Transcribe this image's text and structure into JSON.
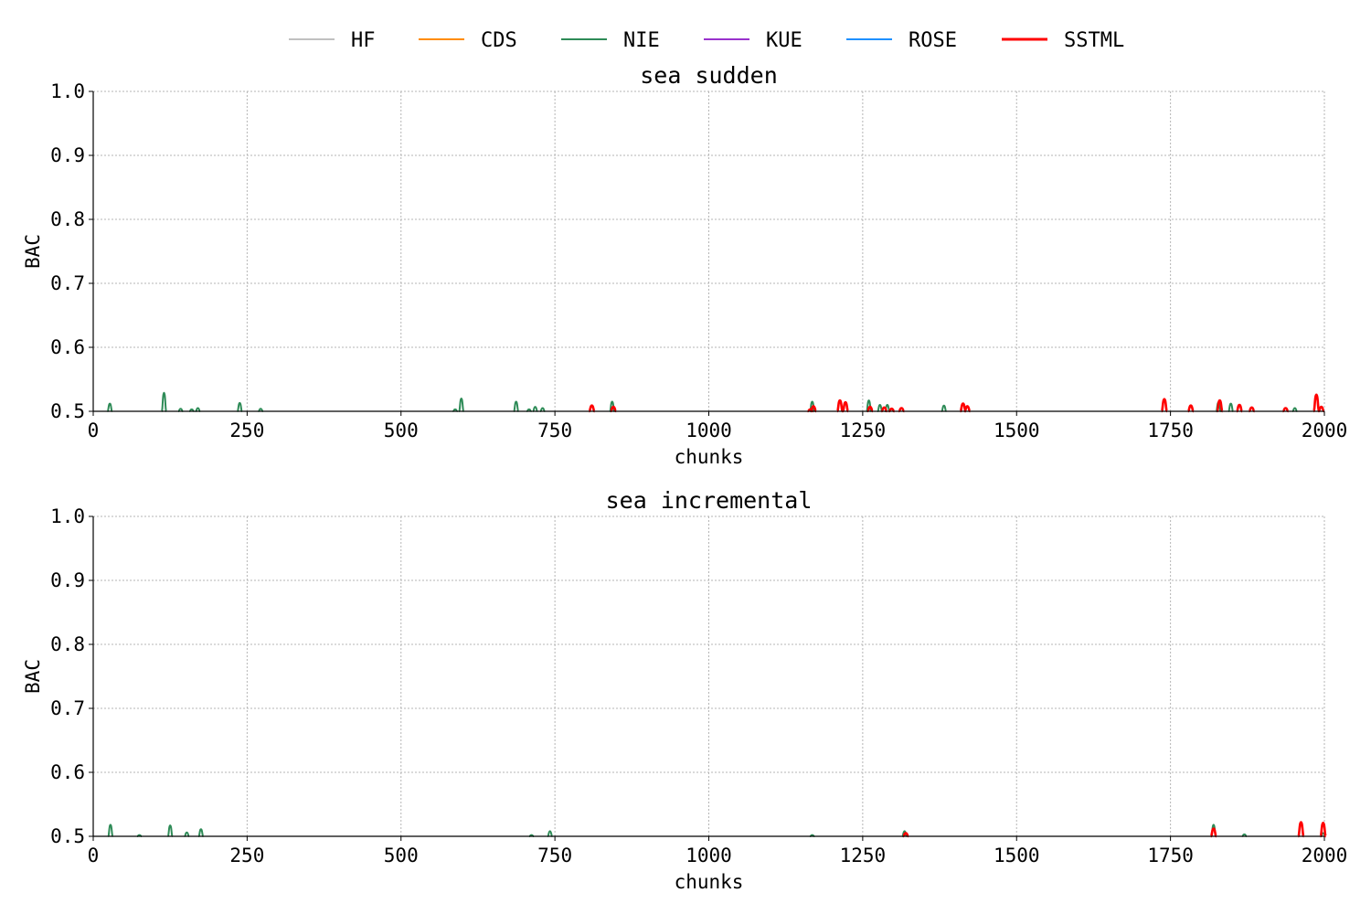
{
  "legend": [
    {
      "name": "HF",
      "color": "#c0c0c0"
    },
    {
      "name": "CDS",
      "color": "#ff8c00"
    },
    {
      "name": "NIE",
      "color": "#2e8b57"
    },
    {
      "name": "KUE",
      "color": "#9932cc"
    },
    {
      "name": "ROSE",
      "color": "#1e90ff"
    },
    {
      "name": "SSTML",
      "color": "#ff0000"
    }
  ],
  "chart_data": [
    {
      "type": "line",
      "title": "sea sudden",
      "xlabel": "chunks",
      "ylabel": "BAC",
      "xlim": [
        0,
        2000
      ],
      "ylim": [
        0.5,
        1.0
      ],
      "xticks": [
        0,
        250,
        500,
        750,
        1000,
        1250,
        1500,
        1750,
        2000
      ],
      "yticks": [
        0.5,
        0.6,
        0.7,
        0.8,
        0.9,
        1.0
      ],
      "grid": true,
      "series": [
        {
          "name": "HF",
          "color": "#c0c0c0",
          "peaks": []
        },
        {
          "name": "CDS",
          "color": "#ff8c00",
          "peaks": []
        },
        {
          "name": "NIE",
          "color": "#2e8b57",
          "peaks": [
            [
              27,
              0.512
            ],
            [
              115,
              0.529
            ],
            [
              142,
              0.504
            ],
            [
              160,
              0.503
            ],
            [
              170,
              0.505
            ],
            [
              238,
              0.513
            ],
            [
              272,
              0.504
            ],
            [
              588,
              0.503
            ],
            [
              598,
              0.52
            ],
            [
              687,
              0.515
            ],
            [
              708,
              0.503
            ],
            [
              718,
              0.507
            ],
            [
              730,
              0.505
            ],
            [
              843,
              0.515
            ],
            [
              1168,
              0.515
            ],
            [
              1260,
              0.517
            ],
            [
              1278,
              0.51
            ],
            [
              1290,
              0.51
            ],
            [
              1382,
              0.509
            ],
            [
              1828,
              0.514
            ],
            [
              1848,
              0.512
            ],
            [
              1952,
              0.505
            ]
          ]
        },
        {
          "name": "KUE",
          "color": "#9932cc",
          "peaks": []
        },
        {
          "name": "ROSE",
          "color": "#1e90ff",
          "peaks": []
        },
        {
          "name": "SSTML",
          "color": "#ff0000",
          "peaks": [
            [
              810,
              0.509
            ],
            [
              845,
              0.507
            ],
            [
              1165,
              0.503
            ],
            [
              1170,
              0.508
            ],
            [
              1213,
              0.517
            ],
            [
              1222,
              0.514
            ],
            [
              1262,
              0.507
            ],
            [
              1285,
              0.506
            ],
            [
              1297,
              0.504
            ],
            [
              1313,
              0.505
            ],
            [
              1413,
              0.512
            ],
            [
              1420,
              0.508
            ],
            [
              1740,
              0.519
            ],
            [
              1783,
              0.509
            ],
            [
              1830,
              0.517
            ],
            [
              1862,
              0.51
            ],
            [
              1882,
              0.506
            ],
            [
              1937,
              0.505
            ],
            [
              1987,
              0.526
            ],
            [
              1995,
              0.507
            ]
          ]
        }
      ]
    },
    {
      "type": "line",
      "title": "sea incremental",
      "xlabel": "chunks",
      "ylabel": "BAC",
      "xlim": [
        0,
        2000
      ],
      "ylim": [
        0.5,
        1.0
      ],
      "xticks": [
        0,
        250,
        500,
        750,
        1000,
        1250,
        1500,
        1750,
        2000
      ],
      "yticks": [
        0.5,
        0.6,
        0.7,
        0.8,
        0.9,
        1.0
      ],
      "grid": true,
      "series": [
        {
          "name": "HF",
          "color": "#c0c0c0",
          "peaks": []
        },
        {
          "name": "CDS",
          "color": "#ff8c00",
          "peaks": []
        },
        {
          "name": "NIE",
          "color": "#2e8b57",
          "peaks": [
            [
              28,
              0.518
            ],
            [
              75,
              0.502
            ],
            [
              125,
              0.517
            ],
            [
              152,
              0.506
            ],
            [
              175,
              0.511
            ],
            [
              712,
              0.502
            ],
            [
              742,
              0.508
            ],
            [
              1168,
              0.502
            ],
            [
              1318,
              0.508
            ],
            [
              1820,
              0.518
            ],
            [
              1870,
              0.503
            ],
            [
              1998,
              0.505
            ]
          ]
        },
        {
          "name": "KUE",
          "color": "#9932cc",
          "peaks": []
        },
        {
          "name": "ROSE",
          "color": "#1e90ff",
          "peaks": []
        },
        {
          "name": "SSTML",
          "color": "#ff0000",
          "peaks": [
            [
              1320,
              0.505
            ],
            [
              1820,
              0.512
            ],
            [
              1962,
              0.522
            ],
            [
              1998,
              0.521
            ]
          ]
        }
      ]
    }
  ]
}
